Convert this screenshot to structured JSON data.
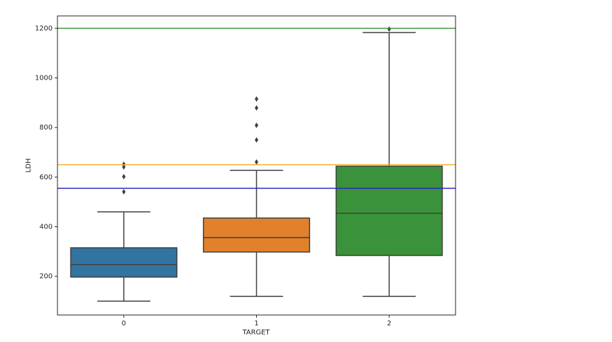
{
  "chart_data": {
    "type": "box",
    "x_label": "TARGET",
    "y_label": "LDH",
    "categories": [
      "0",
      "1",
      "2"
    ],
    "boxes": [
      {
        "color": "#3274a1",
        "whislo": 100,
        "q1": 197,
        "med": 247,
        "q3": 315,
        "whishi": 460,
        "fliers": [
          541,
          602,
          641,
          652
        ]
      },
      {
        "color": "#e1812c",
        "whislo": 119,
        "q1": 298,
        "med": 356,
        "q3": 435,
        "whishi": 627,
        "fliers": [
          661,
          750,
          809,
          879,
          915
        ]
      },
      {
        "color": "#3a923a",
        "whislo": 119,
        "q1": 284,
        "med": 454,
        "q3": 644,
        "whishi": 1183,
        "fliers": [
          1197
        ]
      }
    ],
    "hlines": [
      {
        "value": 1200,
        "color": "#3a9a3a"
      },
      {
        "value": 650,
        "color": "#f0b030"
      },
      {
        "value": 555,
        "color": "#2a2ac0"
      }
    ],
    "ylim": [
      44,
      1250
    ],
    "yticks": [
      200,
      400,
      600,
      800,
      1000,
      1200
    ]
  }
}
